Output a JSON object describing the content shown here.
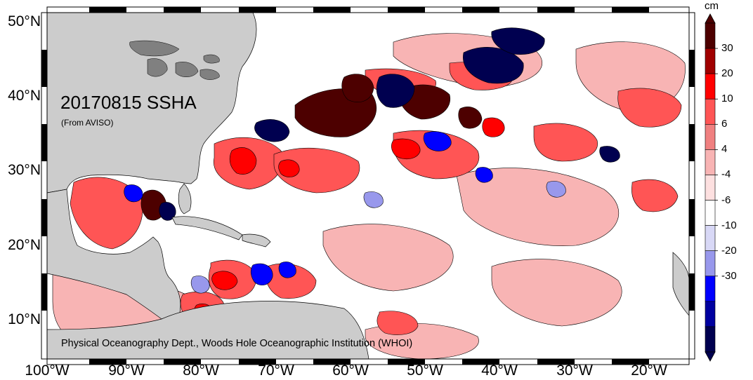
{
  "map": {
    "title": "20170815 SSHA",
    "subtitle": "(From AVISO)",
    "credit": "Physical Oceanography Dept., Woods Hole Oceanographic Institution (WHOI)",
    "lat_labels": [
      "50°N",
      "40°N",
      "30°N",
      "20°N",
      "10°N"
    ],
    "lon_labels": [
      "100°W",
      "90°W",
      "80°W",
      "70°W",
      "60°W",
      "50°W",
      "40°W",
      "30°W",
      "20°W"
    ]
  },
  "colorbar": {
    "unit": "cm",
    "tick_labels": [
      "30",
      "20",
      "10",
      "6",
      "4",
      "-4",
      "-6",
      "-10",
      "-20",
      "-30"
    ],
    "colors": [
      "#4d0000",
      "#a00000",
      "#ff0000",
      "#ff5555",
      "#f08080",
      "#f8b4b4",
      "#fde0e0",
      "#ffffff",
      "#d8d8f6",
      "#9898ec",
      "#0000ff",
      "#0000a0",
      "#000050"
    ],
    "land_color": "#cccccc",
    "ocean_color": "#ffffff"
  }
}
